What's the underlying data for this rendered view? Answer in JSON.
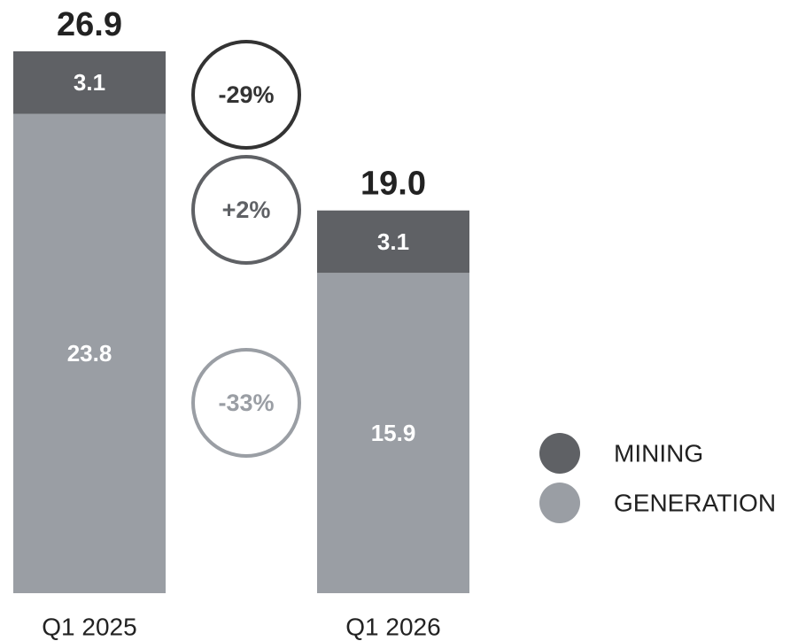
{
  "chart_data": {
    "type": "stacked_bar",
    "categories": [
      "Q1 2025",
      "Q1 2026"
    ],
    "series": [
      {
        "name": "GENERATION",
        "color": "#9a9ea4",
        "values": [
          23.8,
          15.9
        ]
      },
      {
        "name": "MINING",
        "color": "#5f6165",
        "values": [
          3.1,
          3.1
        ]
      }
    ],
    "totals": [
      26.9,
      19
    ],
    "total_labels": [
      "26.9",
      "19.0"
    ],
    "changes": [
      {
        "label": "-29%",
        "color": "#333333"
      },
      {
        "label": "+2%",
        "color": "#5f6165"
      },
      {
        "label": "-33%",
        "color": "#9a9ea4"
      }
    ],
    "ylim": [
      0,
      27
    ]
  }
}
